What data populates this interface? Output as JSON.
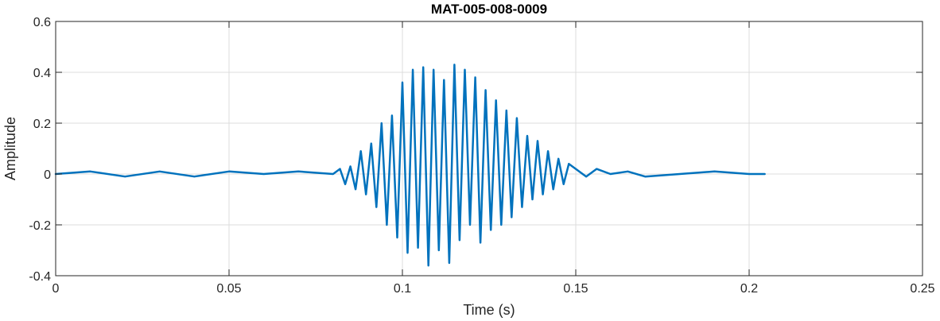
{
  "chart_data": {
    "type": "line",
    "title": "MAT-005-008-0009",
    "xlabel": "Time (s)",
    "ylabel": "Amplitude",
    "xlim": [
      0,
      0.25
    ],
    "ylim": [
      -0.4,
      0.6
    ],
    "x_ticks": [
      0,
      0.05,
      0.1,
      0.15,
      0.2,
      0.25
    ],
    "x_tick_labels": [
      "0",
      "0.05",
      "0.1",
      "0.15",
      "0.2",
      "0.25"
    ],
    "y_ticks": [
      -0.4,
      -0.2,
      0,
      0.2,
      0.4,
      0.6
    ],
    "y_tick_labels": [
      "-0.4",
      "-0.2",
      "0",
      "0.2",
      "0.4",
      "0.6"
    ],
    "grid": true,
    "series": [
      {
        "color": "#0072BD",
        "x": [
          0,
          0.01,
          0.02,
          0.03,
          0.04,
          0.05,
          0.06,
          0.07,
          0.08,
          0.082,
          0.0835,
          0.085,
          0.0865,
          0.088,
          0.0895,
          0.091,
          0.0925,
          0.094,
          0.0955,
          0.097,
          0.0985,
          0.1,
          0.1015,
          0.103,
          0.1045,
          0.106,
          0.1075,
          0.109,
          0.1105,
          0.112,
          0.1135,
          0.115,
          0.1165,
          0.118,
          0.1195,
          0.121,
          0.1225,
          0.124,
          0.1255,
          0.127,
          0.1285,
          0.13,
          0.1315,
          0.133,
          0.1345,
          0.136,
          0.1375,
          0.139,
          0.1405,
          0.142,
          0.1435,
          0.145,
          0.1465,
          0.148,
          0.15,
          0.153,
          0.156,
          0.16,
          0.165,
          0.17,
          0.18,
          0.19,
          0.2,
          0.2045
        ],
        "y": [
          0.0,
          0.01,
          -0.01,
          0.01,
          -0.01,
          0.01,
          0.0,
          0.01,
          0.0,
          0.02,
          -0.04,
          0.03,
          -0.06,
          0.09,
          -0.08,
          0.12,
          -0.13,
          0.2,
          -0.2,
          0.23,
          -0.25,
          0.36,
          -0.31,
          0.41,
          -0.29,
          0.42,
          -0.36,
          0.41,
          -0.3,
          0.37,
          -0.35,
          0.43,
          -0.26,
          0.41,
          -0.2,
          0.38,
          -0.27,
          0.33,
          -0.22,
          0.29,
          -0.2,
          0.25,
          -0.17,
          0.22,
          -0.13,
          0.15,
          -0.1,
          0.13,
          -0.08,
          0.09,
          -0.06,
          0.06,
          -0.04,
          0.04,
          0.02,
          -0.01,
          0.02,
          0.0,
          0.01,
          -0.01,
          0.0,
          0.01,
          0.0,
          0.0
        ]
      }
    ]
  }
}
